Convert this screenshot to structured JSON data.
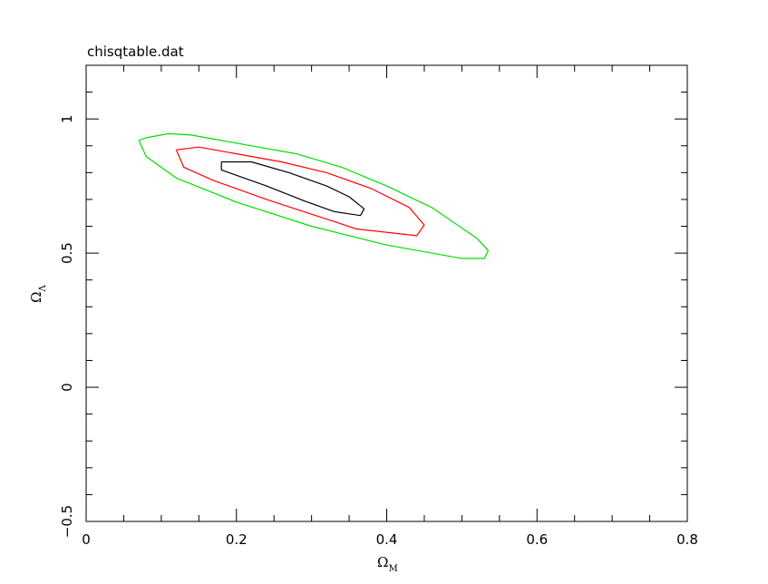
{
  "chart_data": {
    "type": "line",
    "title": "chisqtable.dat",
    "xlabel": "Ω",
    "xlabel_sub": "M",
    "ylabel": "Ω",
    "ylabel_sub": "Λ",
    "xlim": [
      0,
      0.8
    ],
    "ylim": [
      -0.5,
      1.2
    ],
    "x_major_ticks": [
      0,
      0.2,
      0.4,
      0.6,
      0.8
    ],
    "x_tick_labels": [
      "0",
      "0.2",
      "0.4",
      "0.6",
      "0.8"
    ],
    "x_minor_step": 0.05,
    "y_major_ticks": [
      -0.5,
      0,
      0.5,
      1
    ],
    "y_tick_labels": [
      "−0.5",
      "0",
      "0.5",
      "1"
    ],
    "y_minor_step": 0.1,
    "grid": false,
    "legend": "none",
    "series": [
      {
        "color": "#00dd00",
        "x": [
          0.07,
          0.08,
          0.11,
          0.14,
          0.17,
          0.22,
          0.28,
          0.34,
          0.4,
          0.46,
          0.52,
          0.535,
          0.53,
          0.5,
          0.4,
          0.3,
          0.2,
          0.12,
          0.08,
          0.07
        ],
        "y": [
          0.92,
          0.93,
          0.945,
          0.94,
          0.925,
          0.9,
          0.87,
          0.82,
          0.75,
          0.67,
          0.555,
          0.51,
          0.48,
          0.48,
          0.53,
          0.6,
          0.69,
          0.78,
          0.86,
          0.92
        ]
      },
      {
        "color": "#ff0000",
        "x": [
          0.12,
          0.15,
          0.2,
          0.26,
          0.32,
          0.38,
          0.43,
          0.45,
          0.44,
          0.36,
          0.3,
          0.24,
          0.17,
          0.13,
          0.12
        ],
        "y": [
          0.885,
          0.895,
          0.87,
          0.84,
          0.8,
          0.74,
          0.67,
          0.605,
          0.565,
          0.59,
          0.645,
          0.7,
          0.77,
          0.82,
          0.885
        ]
      },
      {
        "color": "#000000",
        "x": [
          0.18,
          0.22,
          0.27,
          0.32,
          0.35,
          0.37,
          0.365,
          0.33,
          0.29,
          0.24,
          0.2,
          0.18,
          0.18
        ],
        "y": [
          0.84,
          0.84,
          0.8,
          0.75,
          0.71,
          0.665,
          0.64,
          0.655,
          0.695,
          0.75,
          0.79,
          0.81,
          0.84
        ]
      }
    ]
  }
}
